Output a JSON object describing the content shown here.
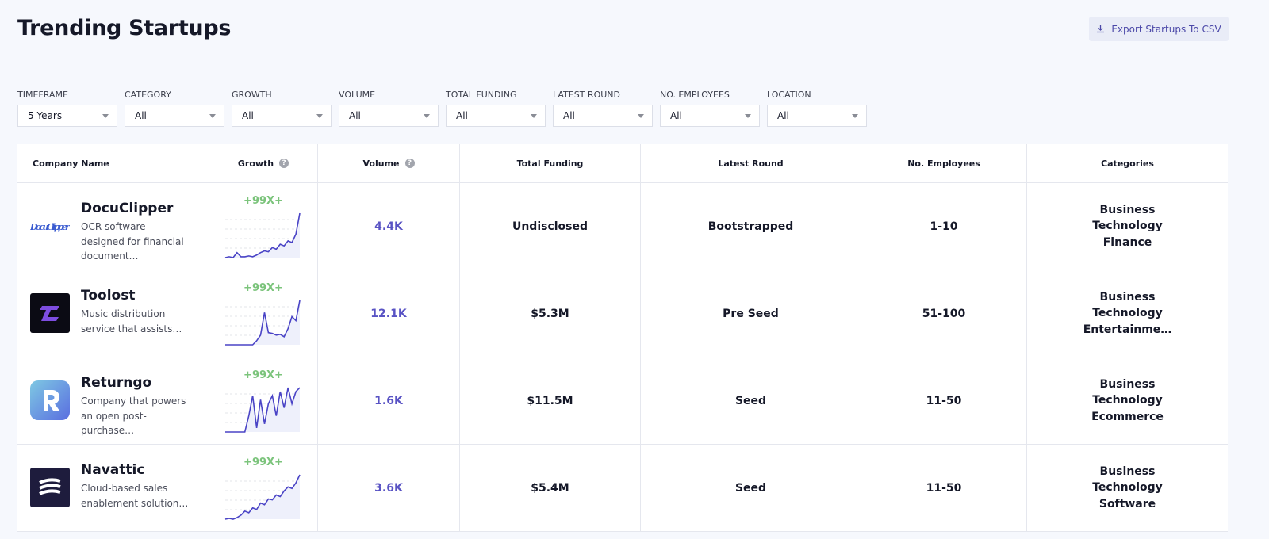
{
  "header": {
    "title": "Trending Startups",
    "export_button": "Export Startups To CSV"
  },
  "filters": [
    {
      "label": "TIMEFRAME",
      "value": "5 Years"
    },
    {
      "label": "CATEGORY",
      "value": "All"
    },
    {
      "label": "GROWTH",
      "value": "All"
    },
    {
      "label": "VOLUME",
      "value": "All"
    },
    {
      "label": "TOTAL FUNDING",
      "value": "All"
    },
    {
      "label": "LATEST ROUND",
      "value": "All"
    },
    {
      "label": "NO. EMPLOYEES",
      "value": "All"
    },
    {
      "label": "LOCATION",
      "value": "All"
    }
  ],
  "table": {
    "columns": [
      "Company Name",
      "Growth",
      "Volume",
      "Total Funding",
      "Latest Round",
      "No. Employees",
      "Categories"
    ],
    "rows": [
      {
        "logo_text": "DocuClipper",
        "name": "DocuClipper",
        "description": "OCR software designed for financial document…",
        "growth_label": "+99X+",
        "sparkline": [
          2,
          3,
          2,
          8,
          3,
          3,
          4,
          3,
          5,
          8,
          10,
          9,
          14,
          12,
          18,
          16,
          22,
          20,
          30,
          55
        ],
        "volume": "4.4K",
        "total_funding": "Undisclosed",
        "latest_round": "Bootstrapped",
        "employees": "1-10",
        "categories": [
          "Business",
          "Technology",
          "Finance"
        ]
      },
      {
        "name": "Toolost",
        "description": "Music distribution service that assists…",
        "growth_label": "+99X+",
        "sparkline": [
          0,
          0,
          0,
          0,
          0,
          0,
          0,
          0,
          5,
          12,
          40,
          15,
          14,
          12,
          13,
          10,
          20,
          35,
          30,
          55
        ],
        "volume": "12.1K",
        "total_funding": "$5.3M",
        "latest_round": "Pre Seed",
        "employees": "51-100",
        "categories": [
          "Business",
          "Technology",
          "Entertainme…"
        ]
      },
      {
        "name": "Returngo",
        "description": "Company that powers an open post-purchase…",
        "growth_label": "+99X+",
        "sparkline": [
          0,
          0,
          0,
          0,
          0,
          0,
          20,
          45,
          5,
          40,
          10,
          35,
          45,
          20,
          50,
          30,
          55,
          35,
          50,
          55
        ],
        "volume": "1.6K",
        "total_funding": "$11.5M",
        "latest_round": "Seed",
        "employees": "11-50",
        "categories": [
          "Business",
          "Technology",
          "Ecommerce"
        ]
      },
      {
        "name": "Navattic",
        "description": "Cloud-based sales enablement solution…",
        "growth_label": "+99X+",
        "sparkline": [
          0,
          1,
          0,
          2,
          5,
          10,
          8,
          14,
          12,
          20,
          18,
          25,
          24,
          30,
          28,
          35,
          40,
          38,
          45,
          55
        ],
        "volume": "3.6K",
        "total_funding": "$5.4M",
        "latest_round": "Seed",
        "employees": "11-50",
        "categories": [
          "Business",
          "Technology",
          "Software"
        ]
      }
    ]
  }
}
